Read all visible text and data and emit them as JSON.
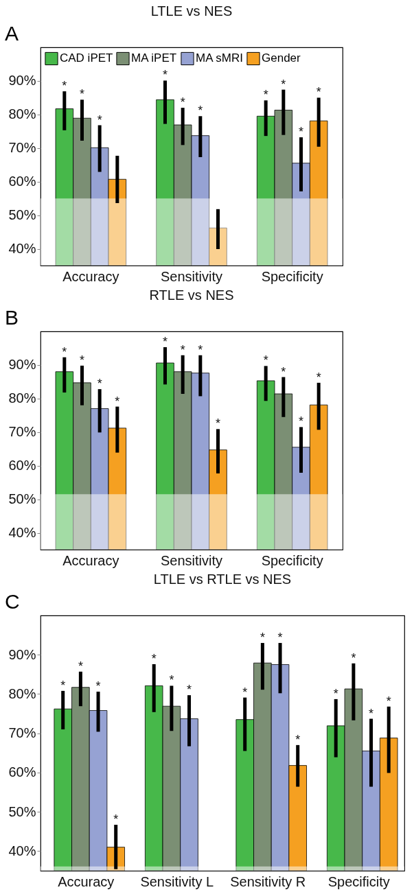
{
  "chart_data": [
    {
      "type": "bar",
      "title": "LTLE vs NES",
      "annotations": [
        "A"
      ],
      "legend": "top",
      "categories": [
        "Accuracy",
        "Sensitivity",
        "Specificity"
      ],
      "ylim": [
        35,
        100
      ],
      "yticks": [
        {
          "value": 40,
          "label": "40%"
        },
        {
          "value": 50,
          "label": "50%"
        },
        {
          "value": 60,
          "label": "60%"
        },
        {
          "value": 70,
          "label": "70%"
        },
        {
          "value": 80,
          "label": "80%"
        },
        {
          "value": 90,
          "label": "90%"
        }
      ],
      "bands": [
        {
          "axis": "y",
          "from": 35,
          "to": 55,
          "color": "#ffffff"
        }
      ],
      "series": [
        {
          "name": "CAD iPET",
          "color": "#47b84a",
          "values": [
            81.7,
            84.4,
            79.5
          ],
          "errors": [
            [
              75.3,
              86.9
            ],
            [
              77.2,
              90.1
            ],
            [
              73.6,
              84.2
            ]
          ],
          "value_labels": [
            "*",
            "*",
            "*"
          ]
        },
        {
          "name": "MA iPET",
          "color": "#7b8f74",
          "values": [
            78.9,
            76.9,
            81.3
          ],
          "errors": [
            [
              72.2,
              84.4
            ],
            [
              70.9,
              82.0
            ],
            [
              73.9,
              87.4
            ]
          ],
          "value_labels": [
            "*",
            "*",
            "*"
          ]
        },
        {
          "name": "MA sMRI",
          "color": "#96a2d3",
          "values": [
            70.1,
            73.7,
            65.5
          ],
          "errors": [
            [
              62.9,
              76.8
            ],
            [
              67.3,
              79.5
            ],
            [
              57.1,
              73.2
            ]
          ],
          "value_labels": [
            "*",
            "*",
            "*"
          ]
        },
        {
          "name": "Gender",
          "color": "#f5a021",
          "values": [
            60.7,
            46.2,
            78.1
          ],
          "errors": [
            [
              53.6,
              67.7
            ],
            [
              39.9,
              51.8
            ],
            [
              70.4,
              85.0
            ]
          ],
          "value_labels": [
            null,
            null,
            "*"
          ]
        }
      ]
    },
    {
      "type": "bar",
      "title": "RTLE vs NES",
      "annotations": [
        "B"
      ],
      "categories": [
        "Accuracy",
        "Sensitivity",
        "Specificity"
      ],
      "ylim": [
        35,
        100
      ],
      "yticks": [
        {
          "value": 40,
          "label": "40%"
        },
        {
          "value": 50,
          "label": "50%"
        },
        {
          "value": 60,
          "label": "60%"
        },
        {
          "value": 70,
          "label": "70%"
        },
        {
          "value": 80,
          "label": "80%"
        },
        {
          "value": 90,
          "label": "90%"
        }
      ],
      "bands": [
        {
          "axis": "y",
          "from": 35,
          "to": 51.5,
          "color": "#ffffff"
        }
      ],
      "series": [
        {
          "color": "#47b84a",
          "values": [
            88.0,
            90.6,
            85.3
          ],
          "errors": [
            [
              81.8,
              92.3
            ],
            [
              84.2,
              95.3
            ],
            [
              79.3,
              89.7
            ]
          ],
          "value_labels": [
            "*",
            "*",
            "*"
          ]
        },
        {
          "color": "#7b8f74",
          "values": [
            84.7,
            88.0,
            81.4
          ],
          "errors": [
            [
              78.0,
              89.8
            ],
            [
              81.4,
              92.9
            ],
            [
              74.5,
              86.4
            ]
          ],
          "value_labels": [
            "*",
            "*",
            "*"
          ]
        },
        {
          "color": "#96a2d3",
          "values": [
            77.0,
            87.6,
            65.5
          ],
          "errors": [
            [
              69.9,
              82.8
            ],
            [
              80.7,
              92.9
            ],
            [
              57.9,
              71.5
            ]
          ],
          "value_labels": [
            "*",
            "*",
            "*"
          ]
        },
        {
          "color": "#f5a021",
          "values": [
            71.2,
            64.7,
            78.1
          ],
          "errors": [
            [
              63.9,
              77.6
            ],
            [
              57.7,
              70.9
            ],
            [
              70.7,
              84.7
            ]
          ],
          "value_labels": [
            "*",
            "*",
            "*"
          ]
        }
      ]
    },
    {
      "type": "bar",
      "title": "LTLE vs RTLE vs NES",
      "annotations": [
        "C"
      ],
      "categories": [
        "Accuracy",
        "Sensitivity L",
        "Sensitivity R",
        "Specificity"
      ],
      "ylim": [
        35,
        100
      ],
      "yticks": [
        {
          "value": 40,
          "label": "40%"
        },
        {
          "value": 50,
          "label": "50%"
        },
        {
          "value": 60,
          "label": "60%"
        },
        {
          "value": 70,
          "label": "70%"
        },
        {
          "value": 80,
          "label": "80%"
        },
        {
          "value": 90,
          "label": "90%"
        }
      ],
      "bands": [
        {
          "axis": "y",
          "from": 35,
          "to": 36.1,
          "color": "#ffffff"
        }
      ],
      "series": [
        {
          "color": "#47b84a",
          "values": [
            76.2,
            82.1,
            73.5,
            71.9
          ],
          "errors": [
            [
              71.0,
              80.8
            ],
            [
              75.4,
              87.6
            ],
            [
              65.5,
              79.1
            ],
            [
              63.9,
              78.7
            ]
          ],
          "value_labels": [
            "*",
            "*",
            "*",
            "*"
          ]
        },
        {
          "color": "#7b8f74",
          "values": [
            81.7,
            76.9,
            87.9,
            81.3
          ],
          "errors": [
            [
              76.9,
              85.7
            ],
            [
              70.6,
              82.1
            ],
            [
              81.1,
              93.0
            ],
            [
              73.3,
              87.8
            ]
          ],
          "value_labels": [
            "*",
            "*",
            "*",
            "*"
          ]
        },
        {
          "color": "#96a2d3",
          "values": [
            75.8,
            73.7,
            87.5,
            65.5
          ],
          "errors": [
            [
              70.4,
              80.6
            ],
            [
              66.7,
              79.7
            ],
            [
              80.2,
              93.0
            ],
            [
              56.4,
              73.7
            ]
          ],
          "value_labels": [
            "*",
            "*",
            "*",
            "*"
          ]
        },
        {
          "color": "#f5a021",
          "values": [
            41.0,
            null,
            61.8,
            68.8
          ],
          "errors": [
            [
              35.4,
              46.7
            ],
            null,
            [
              56.4,
              67.0
            ],
            [
              59.9,
              76.8
            ]
          ],
          "value_labels": [
            "*",
            null,
            "*",
            "*"
          ]
        }
      ]
    }
  ]
}
